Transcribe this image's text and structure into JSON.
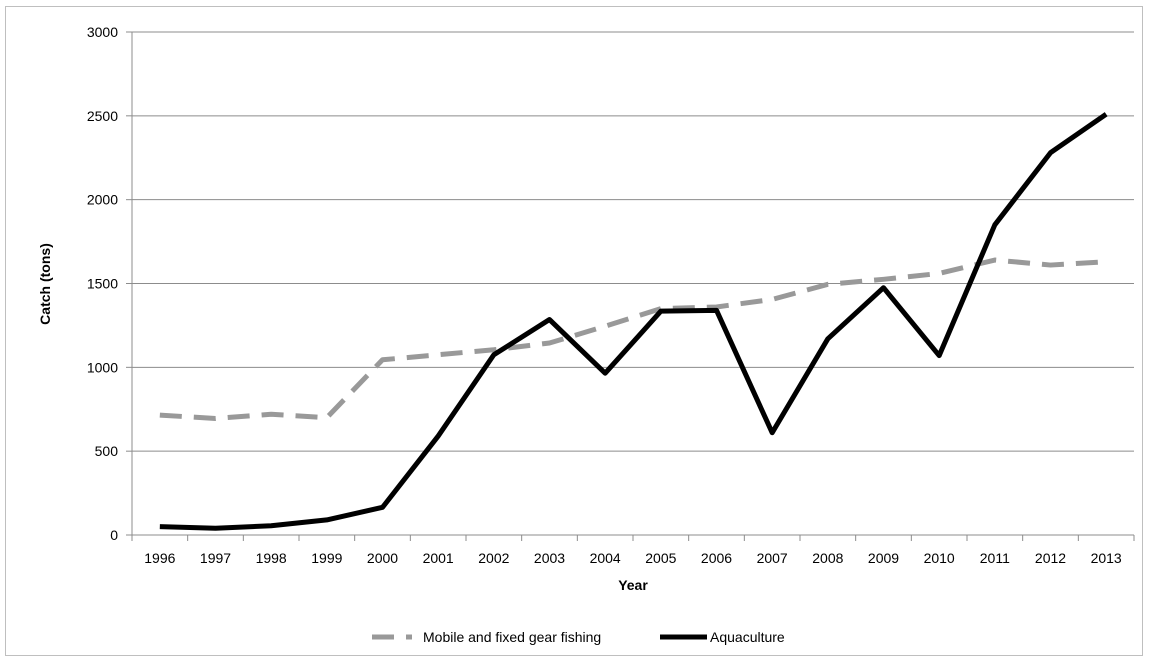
{
  "chart_data": {
    "type": "line",
    "title": "",
    "xlabel": "Year",
    "ylabel": "Catch (tons)",
    "ylim": [
      0,
      3000
    ],
    "yticks": [
      0,
      500,
      1000,
      1500,
      2000,
      2500,
      3000
    ],
    "grid": "horizontal",
    "legend_position": "bottom",
    "categories": [
      "1996",
      "1997",
      "1998",
      "1999",
      "2000",
      "2001",
      "2002",
      "2003",
      "2004",
      "2005",
      "2006",
      "2007",
      "2008",
      "2009",
      "2010",
      "2011",
      "2012",
      "2013"
    ],
    "series": [
      {
        "name": "Mobile and fixed gear fishing",
        "style": "dashed",
        "color": "#999999",
        "values": [
          715,
          695,
          720,
          700,
          1045,
          1075,
          1105,
          1145,
          1245,
          1350,
          1360,
          1405,
          1495,
          1525,
          1560,
          1640,
          1610,
          1630
        ]
      },
      {
        "name": "Aquaculture",
        "style": "solid",
        "color": "#000000",
        "values": [
          50,
          40,
          55,
          90,
          165,
          590,
          1075,
          1285,
          965,
          1335,
          1340,
          610,
          1170,
          1475,
          1070,
          1850,
          2280,
          2510
        ]
      }
    ]
  }
}
